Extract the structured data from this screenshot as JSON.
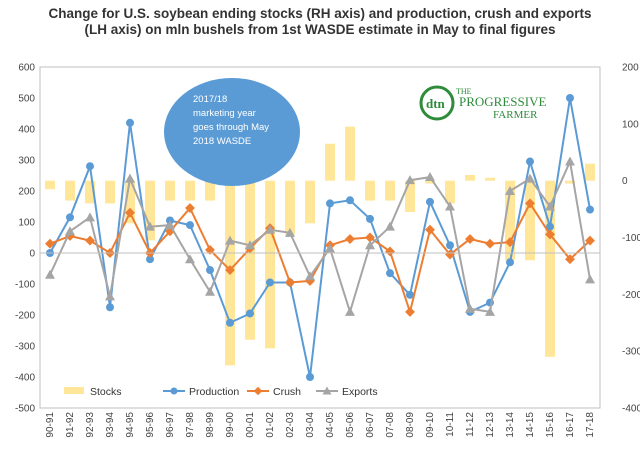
{
  "chart_data": {
    "type": "bar+line",
    "title": "Change for U.S. soybean ending stocks (RH axis) and production, crush and exports (LH axis) on mln bushels from 1st WASDE estimate in May to final figures",
    "categories": [
      "90-91",
      "91-92",
      "92-93",
      "93-94",
      "94-95",
      "95-96",
      "96-97",
      "97-98",
      "98-99",
      "99-00",
      "00-01",
      "01-02",
      "02-03",
      "03-04",
      "04-05",
      "05-06",
      "06-07",
      "07-08",
      "08-09",
      "09-10",
      "10-11",
      "11-12",
      "12-13",
      "13-14",
      "14-15",
      "15-16",
      "16-17",
      "17-18"
    ],
    "left_axis": {
      "ylim": [
        -500,
        600
      ],
      "ticks": [
        "600",
        "500",
        "400",
        "300",
        "200",
        "100",
        "0",
        "-100",
        "-200",
        "-300",
        "-400",
        "-500"
      ]
    },
    "right_axis": {
      "ylim": [
        -400,
        200
      ],
      "ticks": [
        "200",
        "100",
        "0",
        "-100",
        "-200",
        "-300",
        "-400"
      ]
    },
    "grid": false,
    "legend_position": "bottom",
    "series": [
      {
        "name": "Stocks",
        "axis": "right",
        "kind": "bar",
        "color": "#FFE699",
        "values": [
          -15,
          -35,
          -40,
          -40,
          -75,
          -105,
          -35,
          -35,
          -35,
          -325,
          -280,
          -295,
          -95,
          -75,
          65,
          95,
          -35,
          -35,
          -55,
          -5,
          -40,
          10,
          5,
          -140,
          -140,
          -310,
          -5,
          30
        ]
      },
      {
        "name": "Production",
        "axis": "left",
        "kind": "line",
        "color": "#5B9BD5",
        "values": [
          0,
          115,
          280,
          -175,
          420,
          -20,
          105,
          90,
          -55,
          -225,
          -195,
          -95,
          -95,
          -400,
          160,
          170,
          110,
          -65,
          -135,
          165,
          25,
          -190,
          -160,
          -30,
          295,
          85,
          500,
          140
        ]
      },
      {
        "name": "Crush",
        "axis": "left",
        "kind": "line",
        "color": "#ED7D31",
        "values": [
          30,
          55,
          40,
          0,
          130,
          0,
          70,
          145,
          10,
          -55,
          15,
          80,
          -95,
          -90,
          25,
          45,
          50,
          5,
          -190,
          75,
          -5,
          45,
          30,
          35,
          160,
          60,
          -20,
          40
        ]
      },
      {
        "name": "Exports",
        "axis": "left",
        "kind": "line",
        "color": "#A5A5A5",
        "values": [
          -70,
          70,
          115,
          -140,
          240,
          85,
          90,
          -20,
          -125,
          40,
          25,
          75,
          65,
          -75,
          15,
          -190,
          25,
          85,
          235,
          245,
          150,
          -180,
          -190,
          200,
          240,
          150,
          295,
          -85
        ]
      }
    ]
  },
  "annotation": {
    "lines": [
      "2017/18",
      "marketing year",
      "goes through May",
      "2018 WASDE"
    ]
  },
  "logo": {
    "badge": "dtn",
    "name_top": "THE",
    "name_main": "PROGRESSIVE",
    "name_sub": "FARMER"
  },
  "colors": {
    "annotation_fill": "#5B9BD5",
    "logo_green": "#2E8B3A"
  }
}
